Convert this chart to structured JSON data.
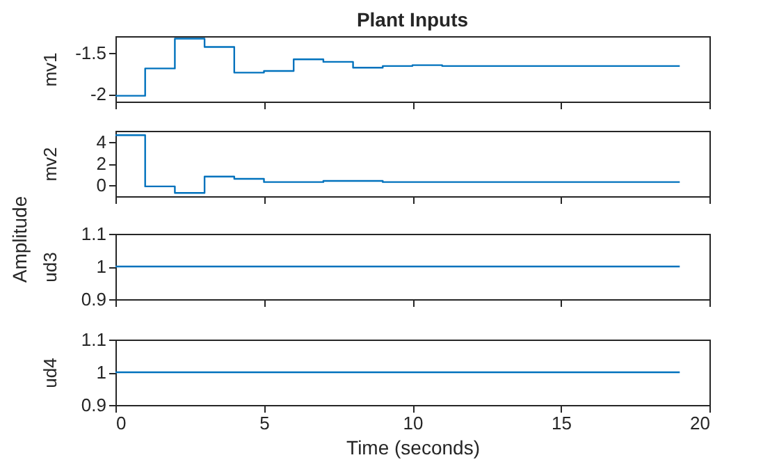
{
  "chart_data": [
    {
      "type": "step",
      "title": "Plant Inputs",
      "ylabel": "mv1",
      "annotations": [
        "Amplitude"
      ],
      "color": "#0072bd",
      "x": [
        0,
        1,
        2,
        3,
        4,
        5,
        6,
        7,
        8,
        9,
        10,
        11,
        12,
        13,
        14,
        15,
        16,
        17,
        18,
        19
      ],
      "values": [
        -2.02,
        -1.69,
        -1.33,
        -1.43,
        -1.74,
        -1.72,
        -1.58,
        -1.61,
        -1.68,
        -1.66,
        -1.65,
        -1.66,
        -1.66,
        -1.66,
        -1.66,
        -1.66,
        -1.66,
        -1.66,
        -1.66,
        -1.66
      ],
      "xlim": [
        0,
        20
      ],
      "xticks": [
        0,
        5,
        10,
        15,
        20
      ],
      "ylim": [
        -2.09,
        -1.3
      ],
      "yticks": [
        -2,
        -1.5
      ],
      "tick_labels": "y"
    },
    {
      "type": "step",
      "ylabel": "mv2",
      "color": "#0072bd",
      "x": [
        0,
        1,
        2,
        3,
        4,
        5,
        6,
        7,
        8,
        9,
        10,
        11,
        12,
        13,
        14,
        15,
        16,
        17,
        18,
        19
      ],
      "values": [
        4.6,
        -0.1,
        -0.7,
        0.8,
        0.6,
        0.3,
        0.3,
        0.4,
        0.4,
        0.3,
        0.3,
        0.3,
        0.3,
        0.3,
        0.3,
        0.3,
        0.3,
        0.3,
        0.3,
        0.3
      ],
      "xlim": [
        0,
        20
      ],
      "xticks": [
        0,
        5,
        10,
        15,
        20
      ],
      "ylim": [
        -1,
        5
      ],
      "yticks": [
        0,
        2,
        4
      ],
      "tick_labels": "y"
    },
    {
      "type": "step",
      "ylabel": "ud3",
      "color": "#0072bd",
      "x": [
        0,
        1,
        2,
        3,
        4,
        5,
        6,
        7,
        8,
        9,
        10,
        11,
        12,
        13,
        14,
        15,
        16,
        17,
        18,
        19
      ],
      "values": [
        1,
        1,
        1,
        1,
        1,
        1,
        1,
        1,
        1,
        1,
        1,
        1,
        1,
        1,
        1,
        1,
        1,
        1,
        1,
        1
      ],
      "xlim": [
        0,
        20
      ],
      "xticks": [
        0,
        5,
        10,
        15,
        20
      ],
      "ylim": [
        0.9,
        1.1
      ],
      "yticks": [
        0.9,
        1,
        1.1
      ],
      "tick_labels": "y"
    },
    {
      "type": "step",
      "xlabel": "Time (seconds)",
      "ylabel": "ud4",
      "color": "#0072bd",
      "x": [
        0,
        1,
        2,
        3,
        4,
        5,
        6,
        7,
        8,
        9,
        10,
        11,
        12,
        13,
        14,
        15,
        16,
        17,
        18,
        19
      ],
      "values": [
        1,
        1,
        1,
        1,
        1,
        1,
        1,
        1,
        1,
        1,
        1,
        1,
        1,
        1,
        1,
        1,
        1,
        1,
        1,
        1
      ],
      "xlim": [
        0,
        20
      ],
      "xticks": [
        0,
        5,
        10,
        15,
        20
      ],
      "ylim": [
        0.9,
        1.1
      ],
      "yticks": [
        0.9,
        1,
        1.1
      ]
    }
  ]
}
